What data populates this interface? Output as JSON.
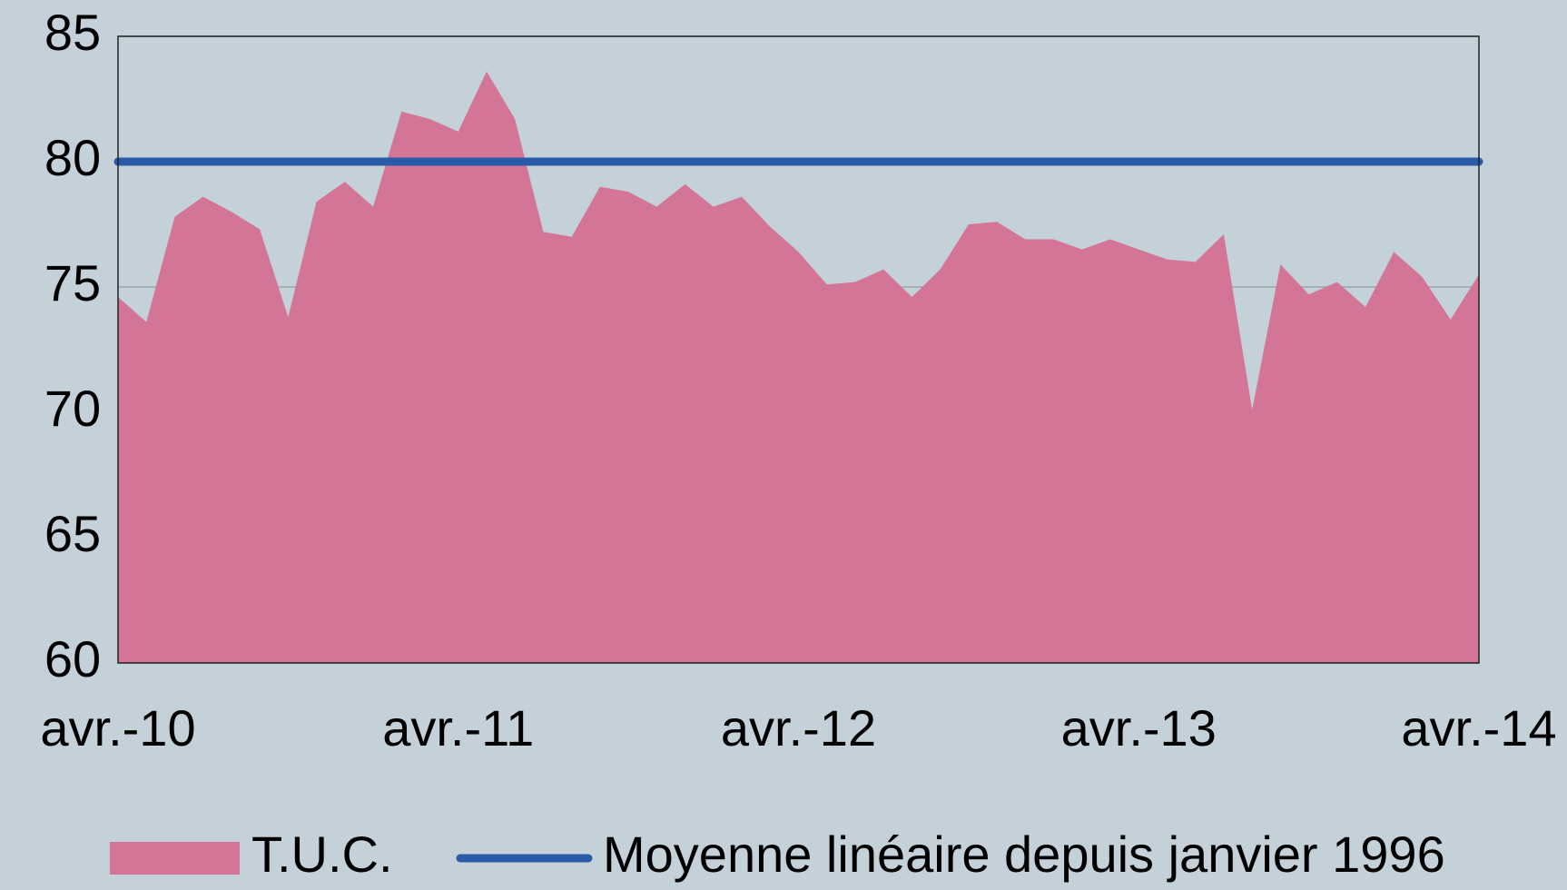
{
  "chart_data": {
    "type": "area",
    "categories": [
      "avr.-10",
      null,
      null,
      null,
      null,
      null,
      null,
      null,
      null,
      null,
      null,
      null,
      "avr.-11",
      null,
      null,
      null,
      null,
      null,
      null,
      null,
      null,
      null,
      null,
      null,
      "avr.-12",
      null,
      null,
      null,
      null,
      null,
      null,
      null,
      null,
      null,
      null,
      null,
      "avr.-13",
      null,
      null,
      null,
      null,
      null,
      null,
      null,
      null,
      null,
      null,
      null,
      "avr.-14"
    ],
    "series": [
      {
        "name": "T.U.C.",
        "color": "#d37596",
        "kind": "area",
        "values": [
          74.6,
          73.6,
          77.8,
          78.6,
          78.0,
          77.3,
          73.8,
          78.4,
          79.2,
          78.2,
          82.0,
          81.7,
          81.2,
          83.6,
          81.7,
          77.2,
          77.0,
          79.0,
          78.8,
          78.2,
          79.1,
          78.2,
          78.6,
          77.4,
          76.4,
          75.1,
          75.2,
          75.7,
          74.6,
          75.7,
          77.5,
          77.6,
          76.9,
          76.9,
          76.5,
          76.9,
          76.5,
          76.1,
          76.0,
          77.1,
          70.1,
          75.9,
          74.7,
          75.2,
          74.2,
          76.4,
          75.4,
          73.7,
          75.5
        ]
      },
      {
        "name": "Moyenne linéaire depuis janvier 1996",
        "color": "#2a5ba8",
        "kind": "line",
        "values": [
          80,
          80,
          80,
          80,
          80,
          80,
          80,
          80,
          80,
          80,
          80,
          80,
          80,
          80,
          80,
          80,
          80,
          80,
          80,
          80,
          80,
          80,
          80,
          80,
          80,
          80,
          80,
          80,
          80,
          80,
          80,
          80,
          80,
          80,
          80,
          80,
          80,
          80,
          80,
          80,
          80,
          80,
          80,
          80,
          80,
          80,
          80,
          80,
          80
        ]
      }
    ],
    "ylim": [
      60,
      85
    ],
    "yticks": [
      60,
      65,
      70,
      75,
      80,
      85
    ],
    "grid": true,
    "legend": "bottom"
  }
}
